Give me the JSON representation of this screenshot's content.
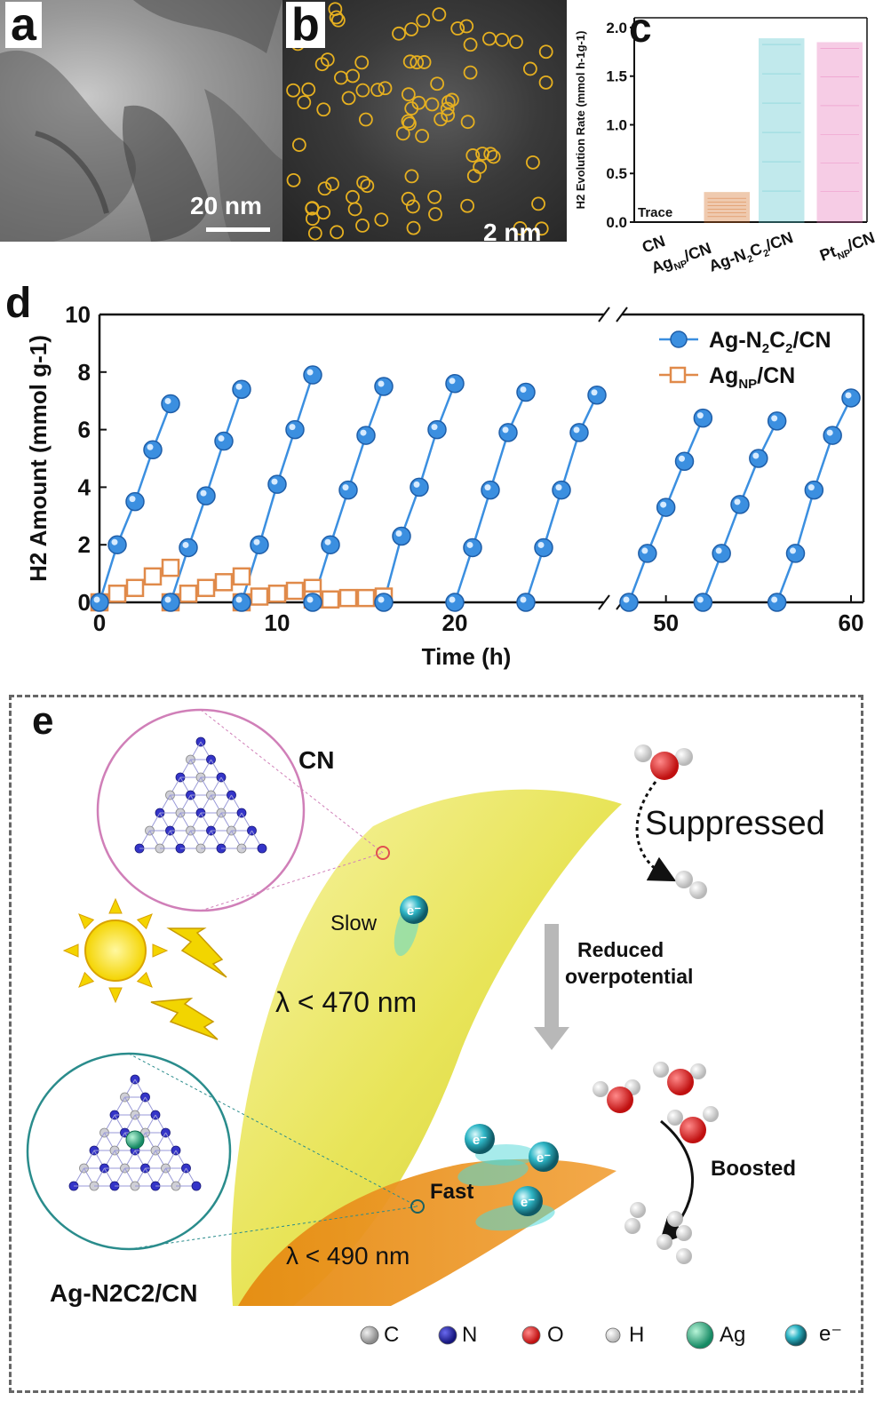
{
  "panel_a": {
    "label": "a",
    "scale": "20 nm"
  },
  "panel_b": {
    "label": "b",
    "scale": "2 nm"
  },
  "panel_c": {
    "label": "c",
    "trace": "Trace",
    "categories": [
      "CN",
      "Ag_NP/CN",
      "Ag-N2C2/CN",
      "Pt_NP/CN"
    ],
    "colors": [
      "#d2691e",
      "#4fc3c9",
      "#e76fb6"
    ]
  },
  "panel_d": {
    "label": "d",
    "legend": [
      "Ag-N2C2/CN",
      "Ag_NP/CN"
    ],
    "colors": {
      "agn2c2": "#3b8fe0",
      "agnp": "#e08a4a"
    }
  },
  "panel_e": {
    "label": "e",
    "cn_title": "CN",
    "suppressed": "Suppressed",
    "slow": "Slow",
    "lambda_top": "λ < 470 nm",
    "reduced": "Reduced",
    "overpotential": "overpotential",
    "fast": "Fast",
    "lambda_bottom": "λ < 490 nm",
    "boosted": "Boosted",
    "ag_title": "Ag-N2C2/CN",
    "legend": [
      "C",
      "N",
      "O",
      "H",
      "Ag",
      "e⁻"
    ],
    "atom_colors": {
      "C": "#c8c8c8",
      "N": "#2b2bb8",
      "O": "#d81e1e",
      "H": "#f2f2f2",
      "Ag": "#22b38a",
      "e": "#1fa7b8"
    }
  },
  "chart_data": [
    {
      "type": "bar",
      "panel": "c",
      "categories": [
        "CN",
        "Ag_NP/CN",
        "Ag-N2C2/CN",
        "Pt_NP/CN"
      ],
      "values": [
        0,
        0.3,
        1.88,
        1.84
      ],
      "annotations": [
        "Trace"
      ],
      "ylabel": "H2 Evolution Rate (mmol h-1g-1)",
      "ylim": [
        0,
        2.1
      ],
      "yticks": [
        0.0,
        0.5,
        1.0,
        1.5,
        2.0
      ]
    },
    {
      "type": "scatter",
      "panel": "d",
      "xlabel": "Time (h)",
      "ylabel": "H2 Amount (mmol g-1)",
      "ylim": [
        0,
        10
      ],
      "yticks": [
        0,
        2,
        4,
        6,
        8,
        10
      ],
      "xticks": [
        0,
        10,
        20,
        50,
        60
      ],
      "axis_break": [
        28,
        48
      ],
      "series": [
        {
          "name": "Ag-N2C2/CN",
          "x": [
            0,
            1,
            2,
            3,
            4,
            4,
            5,
            6,
            7,
            8,
            8,
            9,
            10,
            11,
            12,
            12,
            13,
            14,
            15,
            16,
            16,
            17,
            18,
            19,
            20,
            20,
            21,
            22,
            23,
            24,
            24,
            25,
            26,
            27,
            28,
            48,
            49,
            50,
            51,
            52,
            52,
            53,
            54,
            55,
            56,
            56,
            57,
            58,
            59,
            60
          ],
          "y": [
            0,
            2.0,
            3.5,
            5.3,
            6.9,
            0,
            1.9,
            3.7,
            5.6,
            7.4,
            0,
            2.0,
            4.1,
            6.0,
            7.9,
            0,
            2.0,
            3.9,
            5.8,
            7.5,
            0,
            2.3,
            4.0,
            6.0,
            7.6,
            0,
            1.9,
            3.9,
            5.9,
            7.3,
            0,
            1.9,
            3.9,
            5.9,
            7.2,
            0,
            1.7,
            3.3,
            4.9,
            6.4,
            0,
            1.7,
            3.4,
            5.0,
            6.3,
            0,
            1.7,
            3.9,
            5.8,
            7.1
          ]
        },
        {
          "name": "Ag_NP/CN",
          "x": [
            0,
            1,
            2,
            3,
            4,
            4,
            5,
            6,
            7,
            8,
            8,
            9,
            10,
            11,
            12,
            12,
            13,
            14,
            15,
            16
          ],
          "y": [
            0,
            0.3,
            0.5,
            0.9,
            1.2,
            0,
            0.3,
            0.5,
            0.7,
            0.9,
            0,
            0.2,
            0.3,
            0.4,
            0.5,
            0.1,
            0.1,
            0.15,
            0.15,
            0.2
          ]
        }
      ]
    }
  ]
}
